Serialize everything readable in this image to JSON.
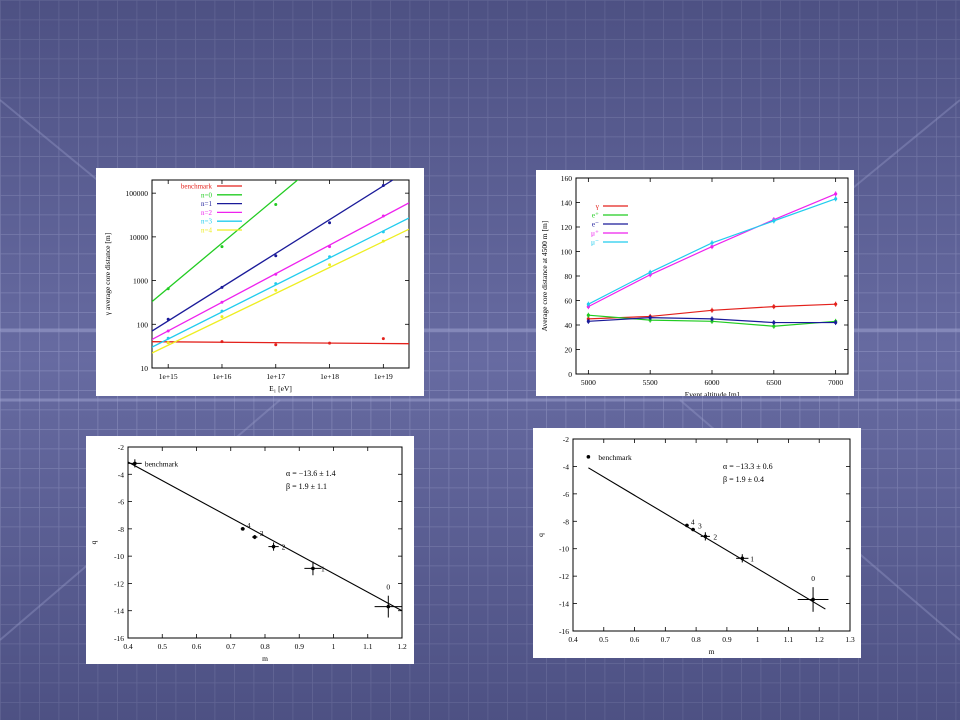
{
  "charts": [
    {
      "id": "gamma-core",
      "type": "line",
      "xscale": "log",
      "yscale": "log",
      "xlim": [
        500000000000000.0,
        3e+19
      ],
      "ylim": [
        10,
        200000
      ],
      "x_ticks": [
        1000000000000000.0,
        1e+16,
        1e+17,
        1e+18,
        1e+19
      ],
      "x_tick_labels": [
        "1e+15",
        "1e+16",
        "1e+17",
        "1e+18",
        "1e+19"
      ],
      "y_ticks": [
        10,
        100,
        1000,
        10000,
        100000
      ],
      "y_tick_labels": [
        "10",
        "100",
        "1000",
        "10000",
        "100000"
      ],
      "xlabel": "E₁ [eV]",
      "ylabel": "γ average core distance [m]",
      "series": [
        {
          "name": "benchmark",
          "color": "#e3211c",
          "line": [
            [
              500000000000000.0,
              40
            ],
            [
              3e+19,
              36
            ]
          ],
          "points": [
            [
              1000000000000000.0,
              38
            ],
            [
              1e+16,
              40
            ],
            [
              1e+17,
              34
            ],
            [
              1e+18,
              37
            ],
            [
              1e+19,
              47
            ]
          ]
        },
        {
          "name": "n=0",
          "color": "#22cc22",
          "line": [
            [
              500000000000000.0,
              330
            ],
            [
              5e+17,
              400000
            ]
          ],
          "points": [
            [
              1000000000000000.0,
              650
            ],
            [
              1e+16,
              6000
            ],
            [
              1e+17,
              55000
            ]
          ]
        },
        {
          "name": "n=1",
          "color": "#1a1a99",
          "line": [
            [
              500000000000000.0,
              70
            ],
            [
              1.5e+19,
              200000
            ]
          ],
          "points": [
            [
              1000000000000000.0,
              130
            ],
            [
              1e+16,
              700
            ],
            [
              1e+17,
              3700
            ],
            [
              1e+18,
              21000
            ],
            [
              1e+19,
              150000
            ]
          ]
        },
        {
          "name": "n=2",
          "color": "#ee22ee",
          "line": [
            [
              500000000000000.0,
              45
            ],
            [
              3e+19,
              60000
            ]
          ],
          "points": [
            [
              1000000000000000.0,
              70
            ],
            [
              1e+16,
              320
            ],
            [
              1e+17,
              1400
            ],
            [
              1e+18,
              6000
            ],
            [
              1e+19,
              30000
            ]
          ]
        },
        {
          "name": "n=3",
          "color": "#22ccee",
          "line": [
            [
              500000000000000.0,
              30
            ],
            [
              3e+19,
              27000
            ]
          ],
          "points": [
            [
              1000000000000000.0,
              48
            ],
            [
              1e+16,
              200
            ],
            [
              1e+17,
              850
            ],
            [
              1e+18,
              3500
            ],
            [
              1e+19,
              13000
            ]
          ]
        },
        {
          "name": "n=4",
          "color": "#eeee22",
          "line": [
            [
              500000000000000.0,
              22
            ],
            [
              3e+19,
              15000
            ]
          ],
          "points": [
            [
              1000000000000000.0,
              38
            ],
            [
              1e+16,
              150
            ],
            [
              1e+17,
              600
            ],
            [
              1e+18,
              2300
            ],
            [
              1e+19,
              8000
            ]
          ]
        }
      ]
    },
    {
      "id": "altitude",
      "type": "line",
      "xlim": [
        4900,
        7100
      ],
      "ylim": [
        0,
        160
      ],
      "x_ticks": [
        5000,
        5500,
        6000,
        6500,
        7000
      ],
      "y_ticks": [
        0,
        20,
        40,
        60,
        80,
        100,
        120,
        140,
        160
      ],
      "xlabel": "Event altitude [m]",
      "ylabel": "Average core distance at 4500 m [m]",
      "x": [
        5000,
        5500,
        6000,
        6500,
        7000
      ],
      "series": [
        {
          "name": "γ",
          "color": "#e3211c",
          "values": [
            45,
            47,
            52,
            55,
            57
          ]
        },
        {
          "name": "e⁺",
          "color": "#22cc22",
          "values": [
            48,
            44,
            43,
            39,
            43
          ]
        },
        {
          "name": "e⁻",
          "color": "#1a1a99",
          "values": [
            43,
            46,
            45,
            42,
            42
          ]
        },
        {
          "name": "μ⁺",
          "color": "#ee22ee",
          "values": [
            55,
            81,
            104,
            126,
            147
          ]
        },
        {
          "name": "μ⁻",
          "color": "#22ccee",
          "values": [
            57,
            83,
            107,
            125,
            143
          ]
        }
      ]
    },
    {
      "id": "qm-left",
      "type": "scatter",
      "xlim": [
        0.4,
        1.2
      ],
      "ylim": [
        -16,
        -2
      ],
      "x_ticks": [
        0.4,
        0.5,
        0.6,
        0.7,
        0.8,
        0.9,
        1,
        1.1,
        1.2
      ],
      "y_ticks": [
        -2,
        -4,
        -6,
        -8,
        -10,
        -12,
        -14,
        -16
      ],
      "xlabel": "m",
      "ylabel": "q",
      "annotations": [
        "α = −13.6 ± 1.4",
        "β = 1.9 ± 1.1"
      ],
      "fit_line": [
        [
          0.4,
          -3.1
        ],
        [
          1.2,
          -14.0
        ]
      ],
      "points": [
        {
          "label": "benchmark",
          "x": 0.42,
          "y": -3.2,
          "xerr": 0.02,
          "yerr": 0.3
        },
        {
          "label": "4",
          "x": 0.735,
          "y": -8.0,
          "xerr": 0.006,
          "yerr": 0.1
        },
        {
          "label": "3",
          "x": 0.77,
          "y": -8.6,
          "xerr": 0.008,
          "yerr": 0.15
        },
        {
          "label": "2",
          "x": 0.825,
          "y": -9.3,
          "xerr": 0.015,
          "yerr": 0.3
        },
        {
          "label": "1",
          "x": 0.94,
          "y": -10.9,
          "xerr": 0.025,
          "yerr": 0.5
        },
        {
          "label": "0",
          "x": 1.16,
          "y": -13.7,
          "xerr": 0.04,
          "yerr": 0.8
        }
      ]
    },
    {
      "id": "qm-right",
      "type": "scatter",
      "xlim": [
        0.4,
        1.3
      ],
      "ylim": [
        -16,
        -2
      ],
      "x_ticks": [
        0.4,
        0.5,
        0.6,
        0.7,
        0.8,
        0.9,
        1,
        1.1,
        1.2,
        1.3
      ],
      "y_ticks": [
        -2,
        -4,
        -6,
        -8,
        -10,
        -12,
        -14,
        -16
      ],
      "xlabel": "m",
      "ylabel": "q",
      "annotations": [
        "α = −13.3 ± 0.6",
        "β = 1.9 ± 0.4"
      ],
      "fit_line": [
        [
          0.45,
          -4.1
        ],
        [
          1.22,
          -14.4
        ]
      ],
      "points": [
        {
          "label": "benchmark",
          "x": 0.45,
          "y": -3.3,
          "xerr": 0.004,
          "yerr": 0.05
        },
        {
          "label": "4",
          "x": 0.77,
          "y": -8.3,
          "xerr": 0.006,
          "yerr": 0.1
        },
        {
          "label": "3",
          "x": 0.79,
          "y": -8.6,
          "xerr": 0.006,
          "yerr": 0.1
        },
        {
          "label": "2",
          "x": 0.83,
          "y": -9.1,
          "xerr": 0.015,
          "yerr": 0.3
        },
        {
          "label": "1",
          "x": 0.95,
          "y": -10.7,
          "xerr": 0.02,
          "yerr": 0.3
        },
        {
          "label": "0",
          "x": 1.18,
          "y": -13.7,
          "xerr": 0.05,
          "yerr": 0.9
        }
      ]
    }
  ]
}
